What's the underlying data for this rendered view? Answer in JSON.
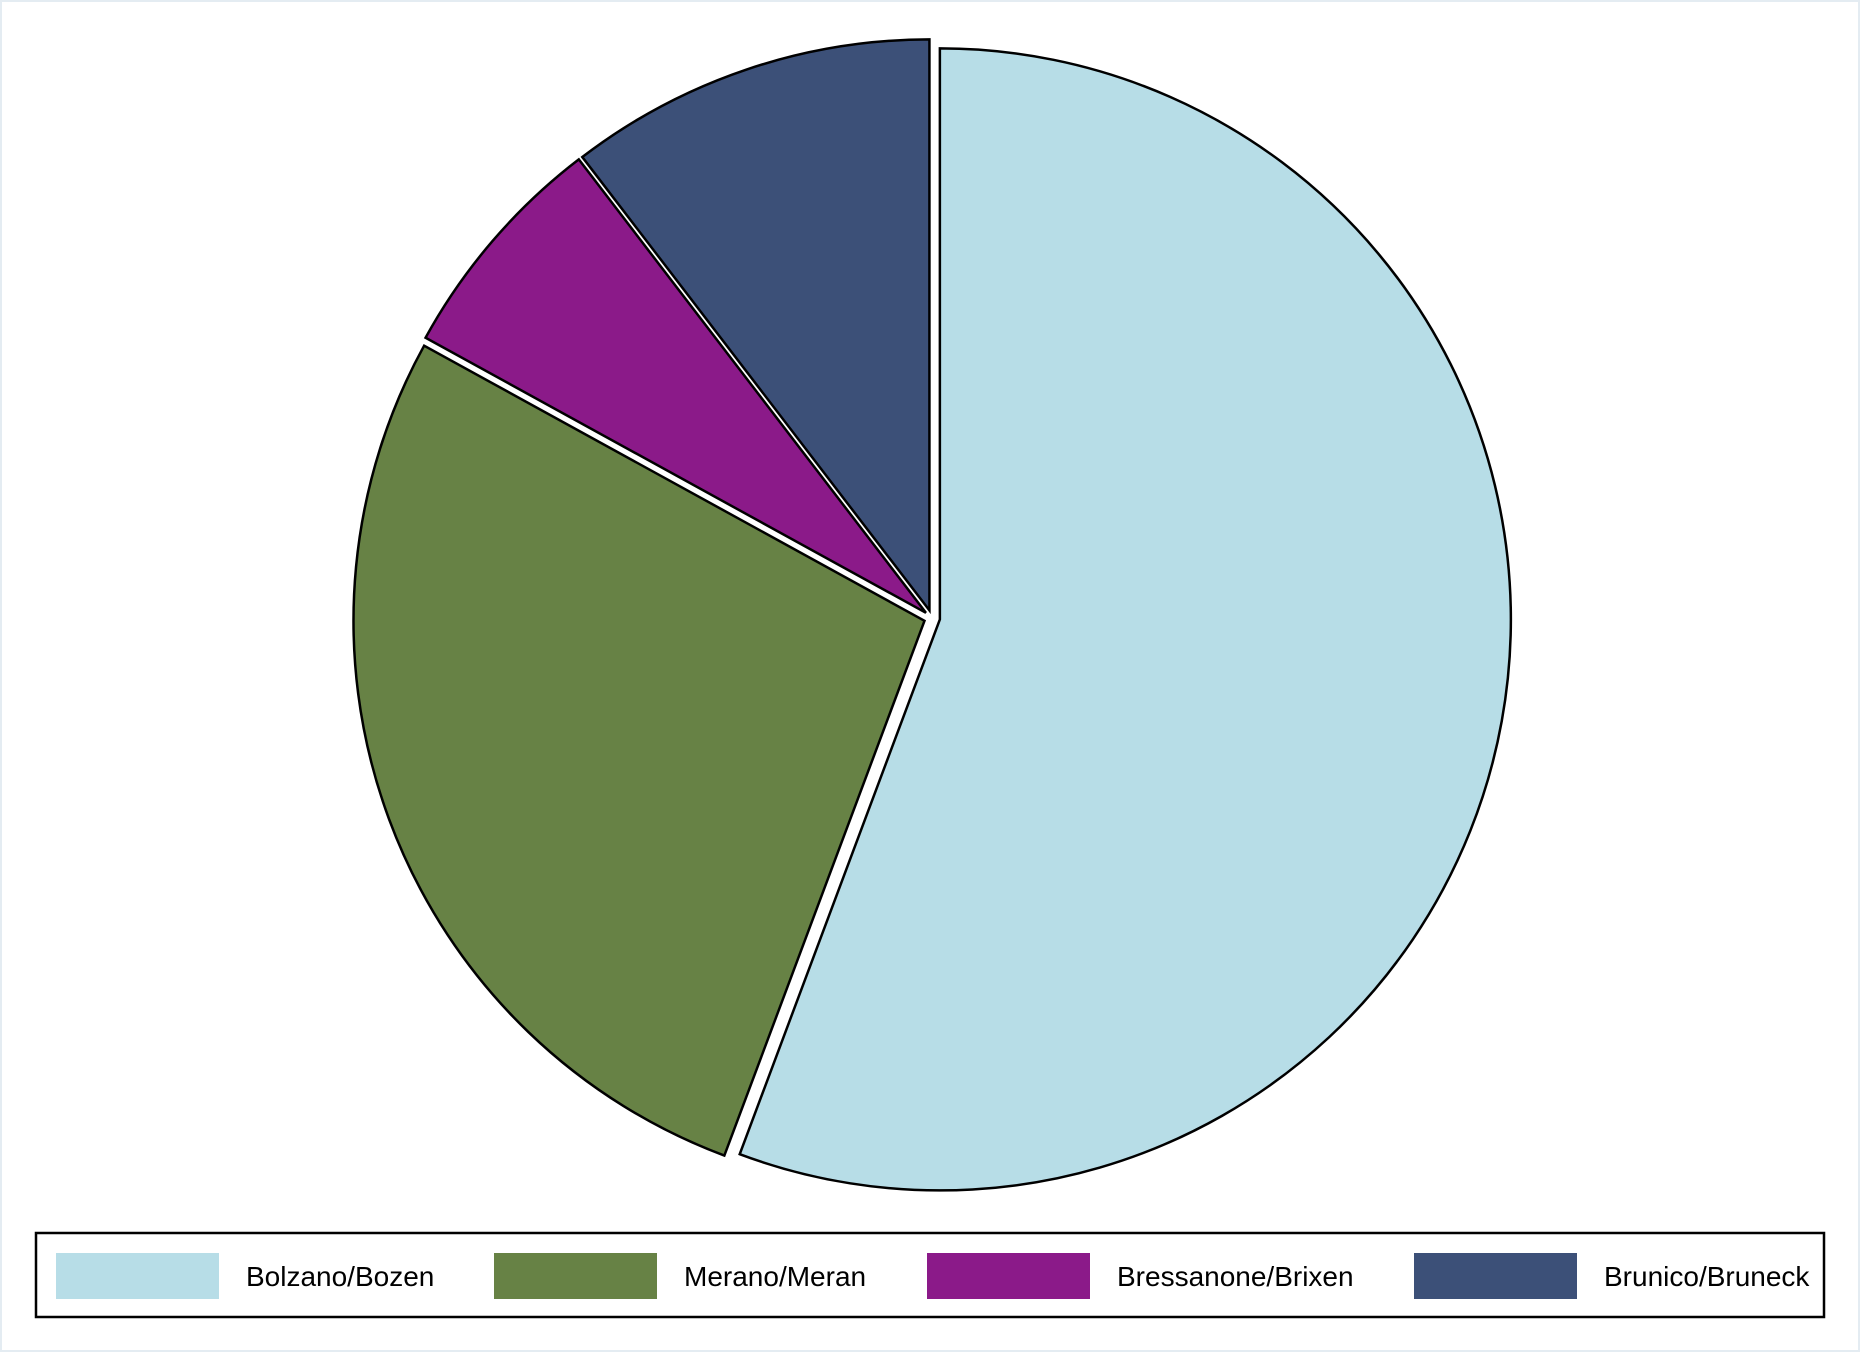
{
  "chart_data": {
    "type": "pie",
    "title": "",
    "start_angle_deg": 90,
    "direction": "clockwise",
    "exploded": true,
    "legend_position": "bottom",
    "slices": [
      {
        "label": "Bolzano/Bozen",
        "value": 55.7,
        "color": "#b7dde7"
      },
      {
        "label": "Merano/Meran",
        "value": 27.3,
        "color": "#678245"
      },
      {
        "label": "Bressanone/Brixen",
        "value": 6.6,
        "color": "#8b1a89"
      },
      {
        "label": "Brunico/Bruneck",
        "value": 10.4,
        "color": "#3c5078"
      }
    ]
  }
}
